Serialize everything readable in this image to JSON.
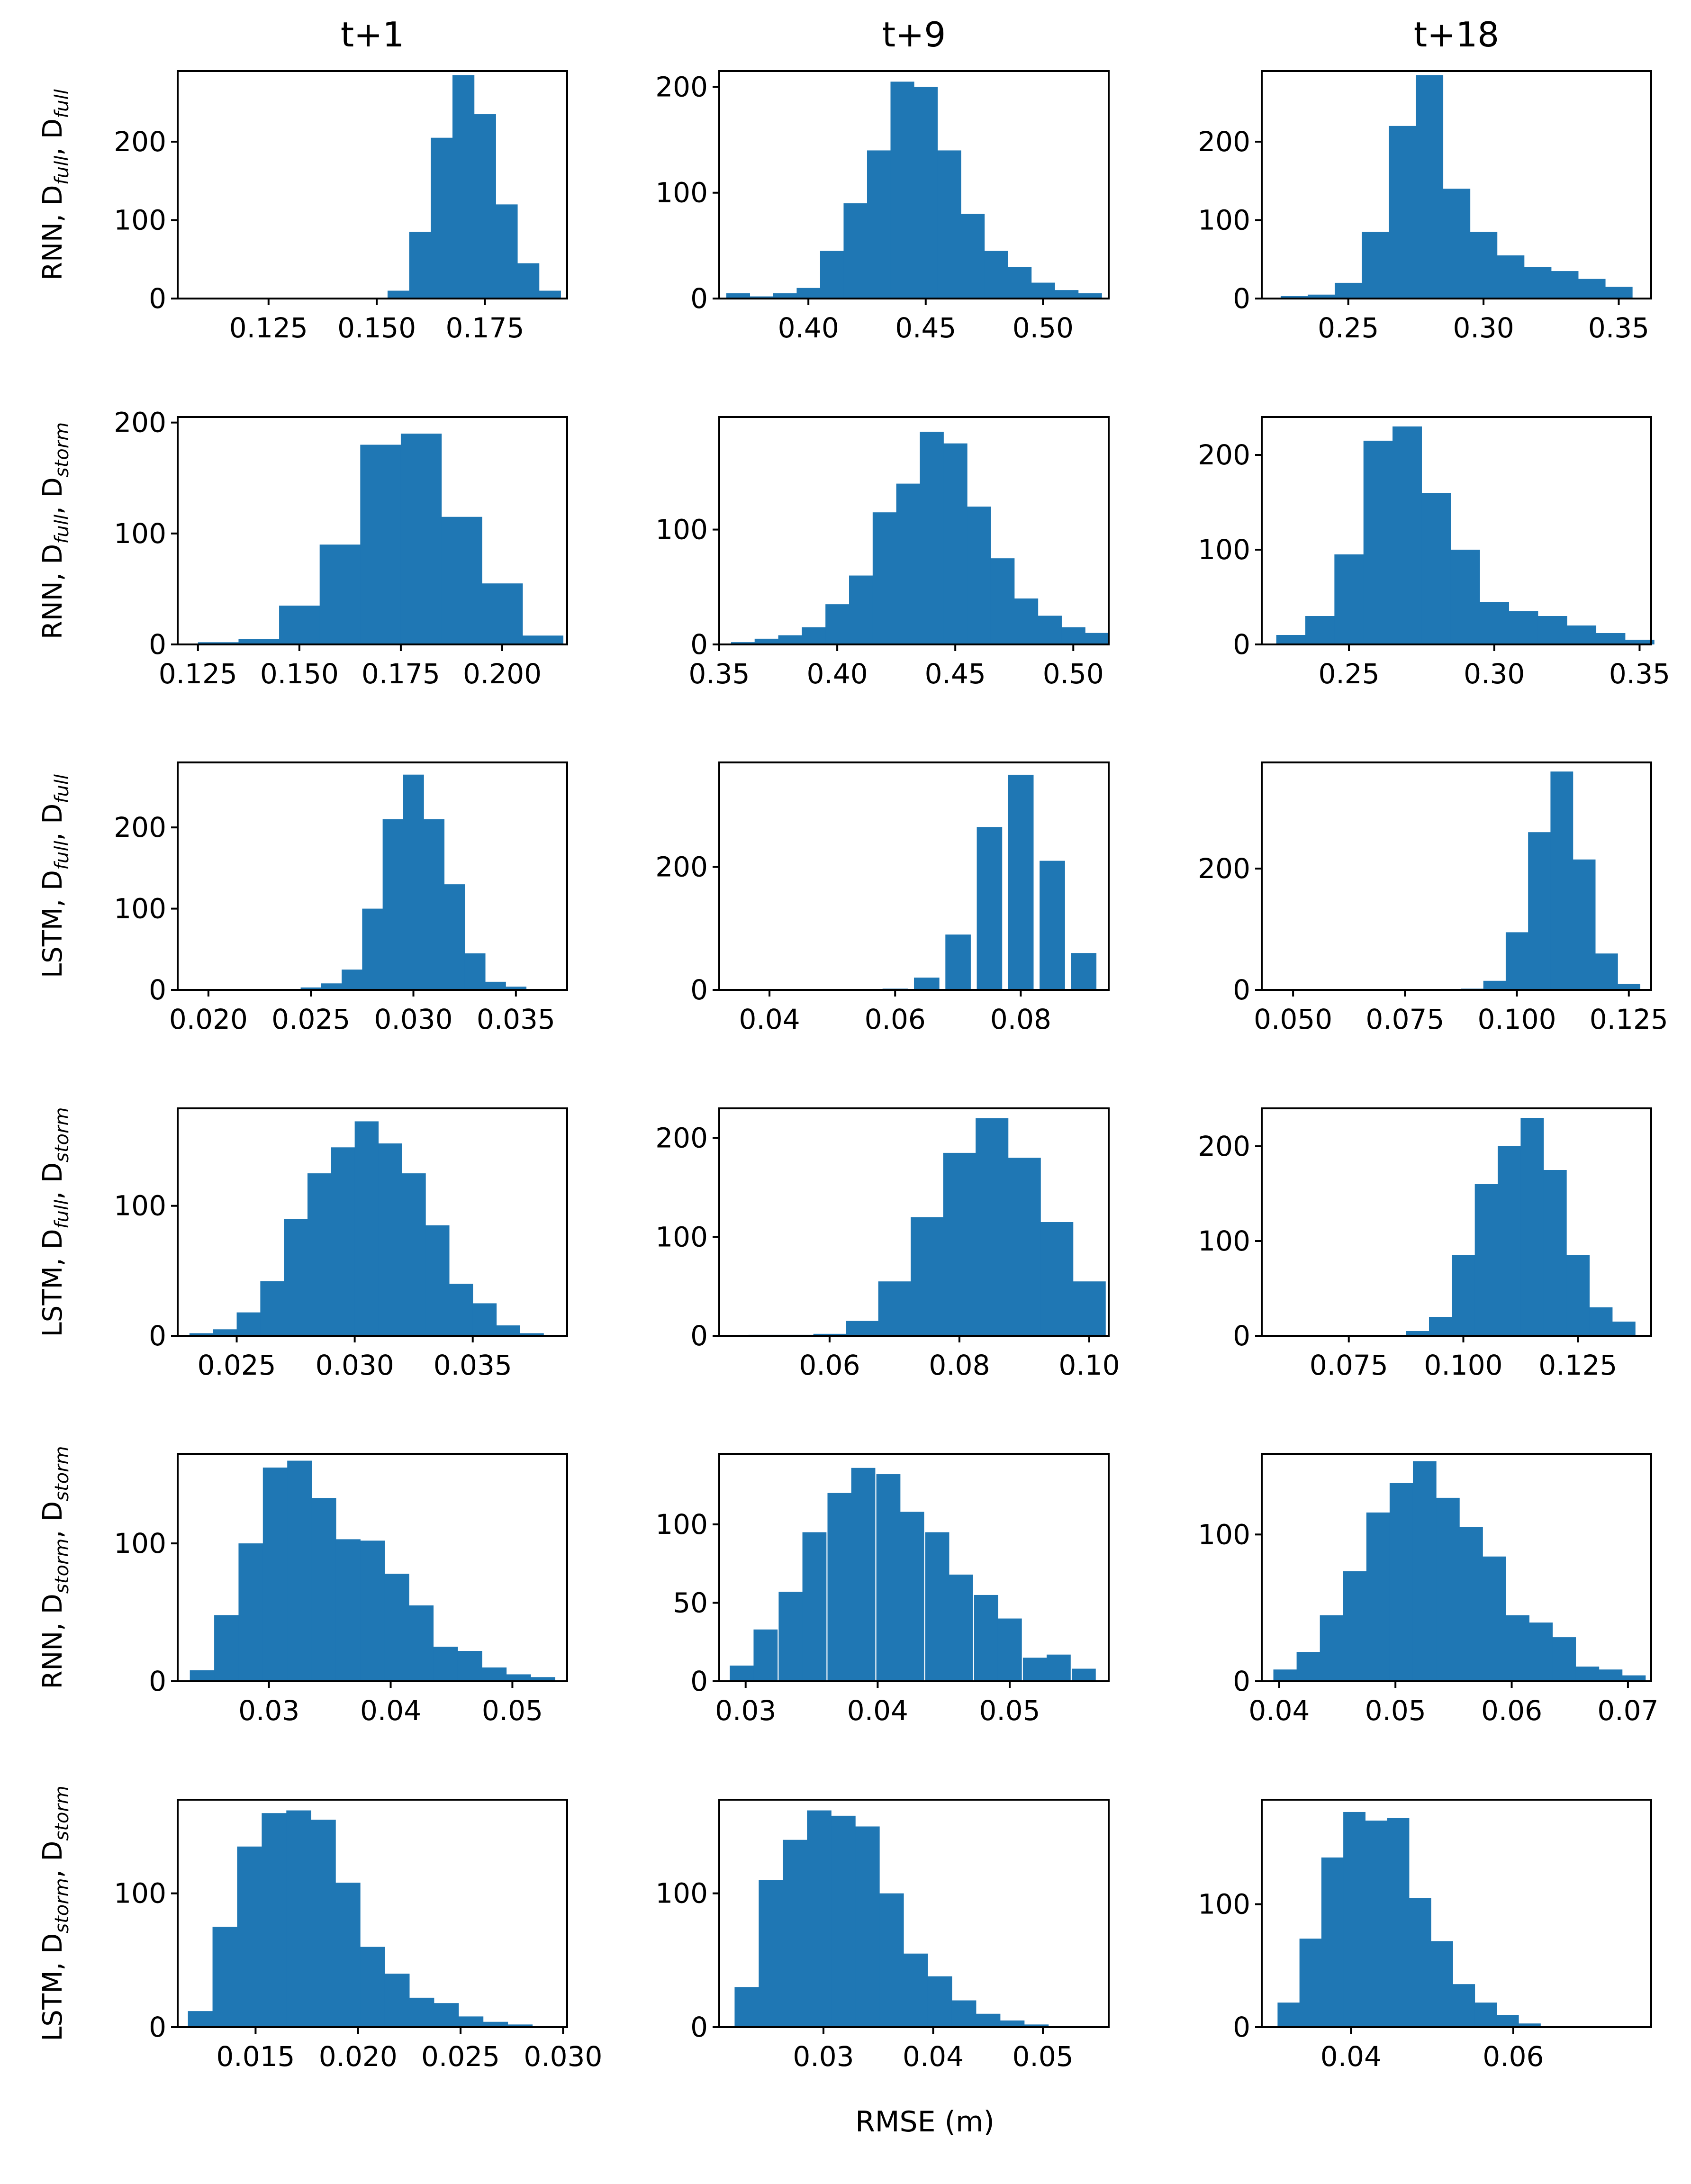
{
  "figure": {
    "column_titles": [
      "t+1",
      "t+9",
      "t+18"
    ],
    "row_labels": [
      {
        "prefix": "RNN, D",
        "s1": "full",
        "mid": ", D",
        "s2": "full"
      },
      {
        "prefix": "RNN, D",
        "s1": "full",
        "mid": ", D",
        "s2": "storm"
      },
      {
        "prefix": "LSTM, D",
        "s1": "full",
        "mid": ", D",
        "s2": "full"
      },
      {
        "prefix": "LSTM, D",
        "s1": "full",
        "mid": ", D",
        "s2": "storm"
      },
      {
        "prefix": "RNN, D",
        "s1": "storm",
        "mid": ", D",
        "s2": "storm"
      },
      {
        "prefix": "LSTM, D",
        "s1": "storm",
        "mid": ", D",
        "s2": "storm"
      }
    ],
    "xlabel": "RMSE (m)",
    "bar_color": "#1f77b4"
  },
  "chart_data": [
    {
      "type": "bar",
      "row": 0,
      "col": 0,
      "xlim": [
        0.104,
        0.194
      ],
      "ylim": [
        0,
        290
      ],
      "x": [
        0.155,
        0.16,
        0.165,
        0.17,
        0.175,
        0.18,
        0.185,
        0.19
      ],
      "values": [
        10,
        85,
        205,
        285,
        235,
        120,
        45,
        10
      ],
      "xticks": [
        0.125,
        0.15,
        0.175
      ],
      "xtick_labels": [
        "0.125",
        "0.150",
        "0.175"
      ],
      "yticks": [
        0,
        100,
        200
      ],
      "ytick_labels": [
        "0",
        "100",
        "200"
      ]
    },
    {
      "type": "bar",
      "row": 0,
      "col": 1,
      "xlim": [
        0.362,
        0.528
      ],
      "ylim": [
        0,
        215
      ],
      "x": [
        0.37,
        0.38,
        0.39,
        0.4,
        0.41,
        0.42,
        0.43,
        0.44,
        0.45,
        0.46,
        0.47,
        0.48,
        0.49,
        0.5,
        0.51,
        0.52
      ],
      "values": [
        5,
        2,
        5,
        10,
        45,
        90,
        140,
        205,
        200,
        140,
        80,
        45,
        30,
        15,
        8,
        5
      ],
      "xticks": [
        0.4,
        0.45,
        0.5
      ],
      "xtick_labels": [
        "0.40",
        "0.45",
        "0.50"
      ],
      "yticks": [
        0,
        100,
        200
      ],
      "ytick_labels": [
        "0",
        "100",
        "200"
      ]
    },
    {
      "type": "bar",
      "row": 0,
      "col": 2,
      "xlim": [
        0.218,
        0.362
      ],
      "ylim": [
        0,
        290
      ],
      "x": [
        0.23,
        0.24,
        0.25,
        0.26,
        0.27,
        0.28,
        0.29,
        0.3,
        0.31,
        0.32,
        0.33,
        0.34,
        0.35
      ],
      "values": [
        3,
        5,
        20,
        85,
        220,
        285,
        140,
        85,
        55,
        40,
        35,
        25,
        15
      ],
      "xticks": [
        0.25,
        0.3,
        0.35
      ],
      "xtick_labels": [
        "0.25",
        "0.30",
        "0.35"
      ],
      "yticks": [
        0,
        100,
        200
      ],
      "ytick_labels": [
        "0",
        "100",
        "200"
      ]
    },
    {
      "type": "bar",
      "row": 1,
      "col": 0,
      "xlim": [
        0.12,
        0.216
      ],
      "ylim": [
        0,
        205
      ],
      "x": [
        0.13,
        0.14,
        0.15,
        0.16,
        0.17,
        0.18,
        0.19,
        0.2,
        0.21
      ],
      "values": [
        2,
        5,
        35,
        90,
        180,
        190,
        115,
        55,
        8
      ],
      "xticks": [
        0.125,
        0.15,
        0.175,
        0.2
      ],
      "xtick_labels": [
        "0.125",
        "0.150",
        "0.175",
        "0.200"
      ],
      "yticks": [
        0,
        100,
        200
      ],
      "ytick_labels": [
        "0",
        "100",
        "200"
      ]
    },
    {
      "type": "bar",
      "row": 1,
      "col": 1,
      "xlim": [
        0.35,
        0.515
      ],
      "ylim": [
        0,
        198
      ],
      "x": [
        0.36,
        0.37,
        0.38,
        0.39,
        0.4,
        0.41,
        0.42,
        0.43,
        0.44,
        0.45,
        0.46,
        0.47,
        0.48,
        0.49,
        0.5,
        0.51
      ],
      "values": [
        2,
        5,
        8,
        15,
        35,
        60,
        115,
        140,
        185,
        175,
        120,
        75,
        40,
        25,
        15,
        10
      ],
      "xticks": [
        0.35,
        0.4,
        0.45,
        0.5
      ],
      "xtick_labels": [
        "0.35",
        "0.40",
        "0.45",
        "0.50"
      ],
      "yticks": [
        0,
        100
      ],
      "ytick_labels": [
        "0",
        "100"
      ]
    },
    {
      "type": "bar",
      "row": 1,
      "col": 2,
      "xlim": [
        0.22,
        0.354
      ],
      "ylim": [
        0,
        240
      ],
      "x": [
        0.23,
        0.24,
        0.25,
        0.26,
        0.27,
        0.28,
        0.29,
        0.3,
        0.31,
        0.32,
        0.33,
        0.34,
        0.35
      ],
      "values": [
        10,
        30,
        95,
        215,
        230,
        160,
        100,
        45,
        35,
        30,
        20,
        12,
        5
      ],
      "xticks": [
        0.25,
        0.3,
        0.35
      ],
      "xtick_labels": [
        "0.25",
        "0.30",
        "0.35"
      ],
      "yticks": [
        0,
        100,
        200
      ],
      "ytick_labels": [
        "0",
        "100",
        "200"
      ]
    },
    {
      "type": "bar",
      "row": 2,
      "col": 0,
      "xlim": [
        0.0185,
        0.0375
      ],
      "ylim": [
        0,
        280
      ],
      "x": [
        0.02,
        0.021,
        0.022,
        0.023,
        0.024,
        0.025,
        0.026,
        0.027,
        0.028,
        0.029,
        0.03,
        0.031,
        0.032,
        0.033,
        0.034,
        0.035,
        0.036
      ],
      "values": [
        1,
        1,
        1,
        1,
        1,
        3,
        8,
        25,
        100,
        210,
        265,
        210,
        130,
        45,
        10,
        4,
        1
      ],
      "xticks": [
        0.02,
        0.025,
        0.03,
        0.035
      ],
      "xtick_labels": [
        "0.020",
        "0.025",
        "0.030",
        "0.035"
      ],
      "yticks": [
        0,
        100,
        200
      ],
      "ytick_labels": [
        "0",
        "100",
        "200"
      ]
    },
    {
      "type": "bar",
      "row": 2,
      "col": 1,
      "xlim": [
        0.032,
        0.094
      ],
      "ylim": [
        0,
        370
      ],
      "x": [
        0.036,
        0.04,
        0.045,
        0.05,
        0.055,
        0.06,
        0.065,
        0.07,
        0.075,
        0.08,
        0.085,
        0.09
      ],
      "values": [
        1,
        1,
        1,
        1,
        1,
        2,
        20,
        90,
        265,
        350,
        210,
        60
      ],
      "xticks": [
        0.04,
        0.06,
        0.08
      ],
      "xtick_labels": [
        "0.04",
        "0.06",
        "0.08"
      ],
      "yticks": [
        0,
        200
      ],
      "ytick_labels": [
        "0",
        "200"
      ]
    },
    {
      "type": "bar",
      "row": 2,
      "col": 2,
      "xlim": [
        0.043,
        0.13
      ],
      "ylim": [
        0,
        375
      ],
      "x": [
        0.05,
        0.06,
        0.07,
        0.08,
        0.09,
        0.095,
        0.1,
        0.105,
        0.11,
        0.115,
        0.12,
        0.125
      ],
      "values": [
        1,
        1,
        1,
        1,
        2,
        15,
        95,
        260,
        360,
        215,
        60,
        10
      ],
      "xticks": [
        0.05,
        0.075,
        0.1,
        0.125
      ],
      "xtick_labels": [
        "0.050",
        "0.075",
        "0.100",
        "0.125"
      ],
      "yticks": [
        0,
        200
      ],
      "ytick_labels": [
        "0",
        "200"
      ]
    },
    {
      "type": "bar",
      "row": 3,
      "col": 0,
      "xlim": [
        0.0225,
        0.039
      ],
      "ylim": [
        0,
        175
      ],
      "x": [
        0.0235,
        0.0245,
        0.0255,
        0.0265,
        0.0275,
        0.0285,
        0.0295,
        0.0305,
        0.0315,
        0.0325,
        0.0335,
        0.0345,
        0.0355,
        0.0365,
        0.0375
      ],
      "values": [
        2,
        5,
        18,
        42,
        90,
        125,
        145,
        165,
        148,
        125,
        85,
        40,
        25,
        8,
        2
      ],
      "xticks": [
        0.025,
        0.03,
        0.035
      ],
      "xtick_labels": [
        "0.025",
        "0.030",
        "0.035"
      ],
      "yticks": [
        0,
        100
      ],
      "ytick_labels": [
        "0",
        "100"
      ]
    },
    {
      "type": "bar",
      "row": 3,
      "col": 1,
      "xlim": [
        0.043,
        0.103
      ],
      "ylim": [
        0,
        230
      ],
      "x": [
        0.05,
        0.055,
        0.06,
        0.065,
        0.07,
        0.075,
        0.08,
        0.085,
        0.09,
        0.095,
        0.1
      ],
      "values": [
        1,
        1,
        2,
        15,
        55,
        120,
        185,
        220,
        180,
        115,
        55
      ],
      "xticks": [
        0.06,
        0.08,
        0.1
      ],
      "xtick_labels": [
        "0.06",
        "0.08",
        "0.10"
      ],
      "yticks": [
        0,
        100,
        200
      ],
      "ytick_labels": [
        "0",
        "100",
        "200"
      ]
    },
    {
      "type": "bar",
      "row": 3,
      "col": 2,
      "xlim": [
        0.056,
        0.141
      ],
      "ylim": [
        0,
        240
      ],
      "x": [
        0.065,
        0.075,
        0.085,
        0.09,
        0.095,
        0.1,
        0.105,
        0.11,
        0.115,
        0.12,
        0.125,
        0.13,
        0.135
      ],
      "values": [
        1,
        1,
        1,
        5,
        20,
        85,
        160,
        200,
        230,
        175,
        85,
        30,
        15
      ],
      "xticks": [
        0.075,
        0.1,
        0.125
      ],
      "xtick_labels": [
        "0.075",
        "0.100",
        "0.125"
      ],
      "yticks": [
        0,
        100,
        200
      ],
      "ytick_labels": [
        "0",
        "100",
        "200"
      ]
    },
    {
      "type": "bar",
      "row": 4,
      "col": 0,
      "xlim": [
        0.0225,
        0.0545
      ],
      "ylim": [
        0,
        165
      ],
      "x": [
        0.0245,
        0.0265,
        0.0285,
        0.0305,
        0.0325,
        0.0345,
        0.0365,
        0.0385,
        0.0405,
        0.0425,
        0.0445,
        0.0465,
        0.0485,
        0.0505,
        0.0525
      ],
      "values": [
        8,
        48,
        100,
        155,
        160,
        133,
        103,
        102,
        78,
        55,
        25,
        22,
        10,
        5,
        3
      ],
      "xticks": [
        0.03,
        0.04,
        0.05
      ],
      "xtick_labels": [
        "0.03",
        "0.04",
        "0.05"
      ],
      "yticks": [
        0,
        100
      ],
      "ytick_labels": [
        "0",
        "100"
      ]
    },
    {
      "type": "bar",
      "row": 4,
      "col": 1,
      "xlim": [
        0.028,
        0.0575
      ],
      "ylim": [
        0,
        145
      ],
      "x": [
        0.0297,
        0.0315,
        0.0334,
        0.0352,
        0.0371,
        0.0389,
        0.0408,
        0.0426,
        0.0445,
        0.0463,
        0.0482,
        0.05,
        0.0519,
        0.0537,
        0.0556
      ],
      "values": [
        10,
        33,
        57,
        95,
        120,
        136,
        132,
        108,
        95,
        68,
        55,
        40,
        15,
        17,
        8
      ],
      "xticks": [
        0.03,
        0.04,
        0.05
      ],
      "xtick_labels": [
        "0.03",
        "0.04",
        "0.05"
      ],
      "yticks": [
        0,
        50,
        100
      ],
      "ytick_labels": [
        "0",
        "50",
        "100"
      ]
    },
    {
      "type": "bar",
      "row": 4,
      "col": 2,
      "xlim": [
        0.0385,
        0.072
      ],
      "ylim": [
        0,
        155
      ],
      "x": [
        0.0405,
        0.0425,
        0.0445,
        0.0465,
        0.0485,
        0.0505,
        0.0525,
        0.0545,
        0.0565,
        0.0585,
        0.0605,
        0.0625,
        0.0645,
        0.0665,
        0.0685,
        0.0705
      ],
      "values": [
        8,
        20,
        45,
        75,
        115,
        135,
        150,
        125,
        105,
        85,
        45,
        40,
        30,
        10,
        8,
        4
      ],
      "xticks": [
        0.04,
        0.05,
        0.06,
        0.07
      ],
      "xtick_labels": [
        "0.04",
        "0.05",
        "0.06",
        "0.07"
      ],
      "yticks": [
        0,
        100
      ],
      "ytick_labels": [
        "0",
        "100"
      ]
    },
    {
      "type": "bar",
      "row": 5,
      "col": 0,
      "xlim": [
        0.0112,
        0.0302
      ],
      "ylim": [
        0,
        170
      ],
      "x": [
        0.0123,
        0.0135,
        0.0147,
        0.0159,
        0.0171,
        0.0183,
        0.0195,
        0.0207,
        0.0219,
        0.0231,
        0.0243,
        0.0255,
        0.0267,
        0.0279,
        0.0291
      ],
      "values": [
        12,
        75,
        135,
        160,
        162,
        155,
        108,
        60,
        40,
        22,
        18,
        8,
        4,
        2,
        1
      ],
      "xticks": [
        0.015,
        0.02,
        0.025,
        0.03
      ],
      "xtick_labels": [
        "0.015",
        "0.020",
        "0.025",
        "0.030"
      ],
      "yticks": [
        0,
        100
      ],
      "ytick_labels": [
        "0",
        "100"
      ]
    },
    {
      "type": "bar",
      "row": 5,
      "col": 1,
      "xlim": [
        0.0205,
        0.056
      ],
      "ylim": [
        0,
        170
      ],
      "x": [
        0.023,
        0.0252,
        0.0274,
        0.0296,
        0.0318,
        0.034,
        0.0362,
        0.0384,
        0.0406,
        0.0428,
        0.045,
        0.0472,
        0.0494,
        0.0516,
        0.0538
      ],
      "values": [
        30,
        110,
        140,
        162,
        158,
        150,
        100,
        55,
        38,
        20,
        10,
        5,
        2,
        1,
        1
      ],
      "xticks": [
        0.03,
        0.04,
        0.05
      ],
      "xtick_labels": [
        "0.03",
        "0.04",
        "0.05"
      ],
      "yticks": [
        0,
        100
      ],
      "ytick_labels": [
        "0",
        "100"
      ]
    },
    {
      "type": "bar",
      "row": 5,
      "col": 2,
      "xlim": [
        0.029,
        0.077
      ],
      "ylim": [
        0,
        185
      ],
      "x": [
        0.0323,
        0.035,
        0.0377,
        0.0404,
        0.0431,
        0.0458,
        0.0485,
        0.0512,
        0.0539,
        0.0566,
        0.0593,
        0.062,
        0.0647,
        0.0674,
        0.0701
      ],
      "values": [
        20,
        72,
        138,
        175,
        168,
        170,
        105,
        70,
        35,
        20,
        10,
        3,
        1,
        1,
        1
      ],
      "xticks": [
        0.04,
        0.06
      ],
      "xtick_labels": [
        "0.04",
        "0.06"
      ],
      "yticks": [
        0,
        100
      ],
      "ytick_labels": [
        "0",
        "100"
      ]
    }
  ]
}
